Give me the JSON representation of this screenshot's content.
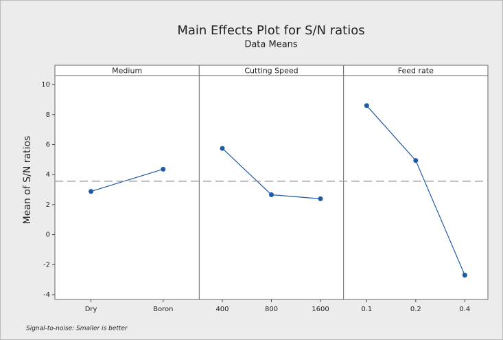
{
  "chart_data": {
    "type": "line",
    "title": "Main Effects Plot for S/N ratios",
    "subtitle": "Data Means",
    "ylabel": "Mean of S/N ratios",
    "footnote": "Signal-to-noise: Smaller is better",
    "color": "#1f5aa6",
    "mean": 3.56,
    "ylim": [
      -4.32,
      10.6
    ],
    "yticks": [
      -4,
      -2,
      0,
      2,
      4,
      6,
      8,
      10
    ],
    "panels": [
      {
        "name": "Medium",
        "categories": [
          "Dry",
          "Boron"
        ],
        "values": [
          2.88,
          4.36
        ]
      },
      {
        "name": "Cutting Speed",
        "categories": [
          "400",
          "800",
          "1600"
        ],
        "values": [
          5.75,
          2.66,
          2.39
        ]
      },
      {
        "name": "Feed rate",
        "categories": [
          "0.1",
          "0.2",
          "0.4"
        ],
        "values": [
          8.6,
          4.94,
          -2.7
        ]
      }
    ]
  }
}
